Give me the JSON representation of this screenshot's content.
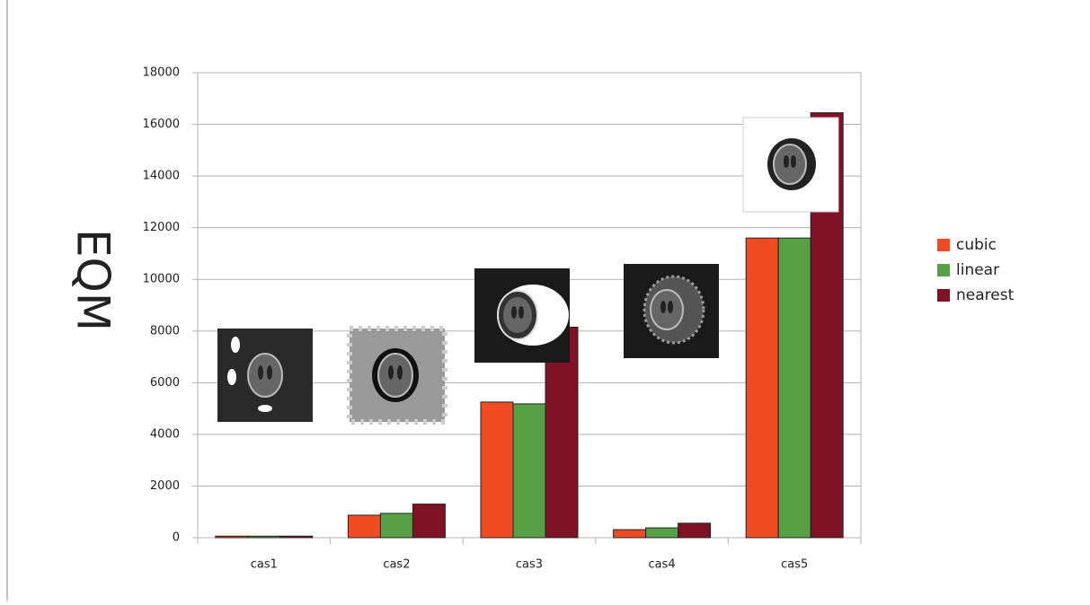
{
  "chart_data": {
    "type": "bar",
    "y_label": "EQM",
    "categories": [
      "cas1",
      "cas2",
      "cas3",
      "cas4",
      "cas5"
    ],
    "series": [
      {
        "name": "cubic",
        "color": "#f04b23",
        "values": [
          60,
          870,
          5250,
          310,
          11600
        ]
      },
      {
        "name": "linear",
        "color": "#58a045",
        "values": [
          60,
          940,
          5180,
          380,
          11600
        ]
      },
      {
        "name": "nearest",
        "color": "#7f1224",
        "values": [
          60,
          1300,
          8150,
          560,
          16450
        ]
      }
    ],
    "ylim": [
      0,
      18000
    ],
    "yticks": [
      0,
      2000,
      4000,
      6000,
      8000,
      10000,
      12000,
      14000,
      16000,
      18000
    ],
    "grid": true,
    "legend": "right"
  }
}
